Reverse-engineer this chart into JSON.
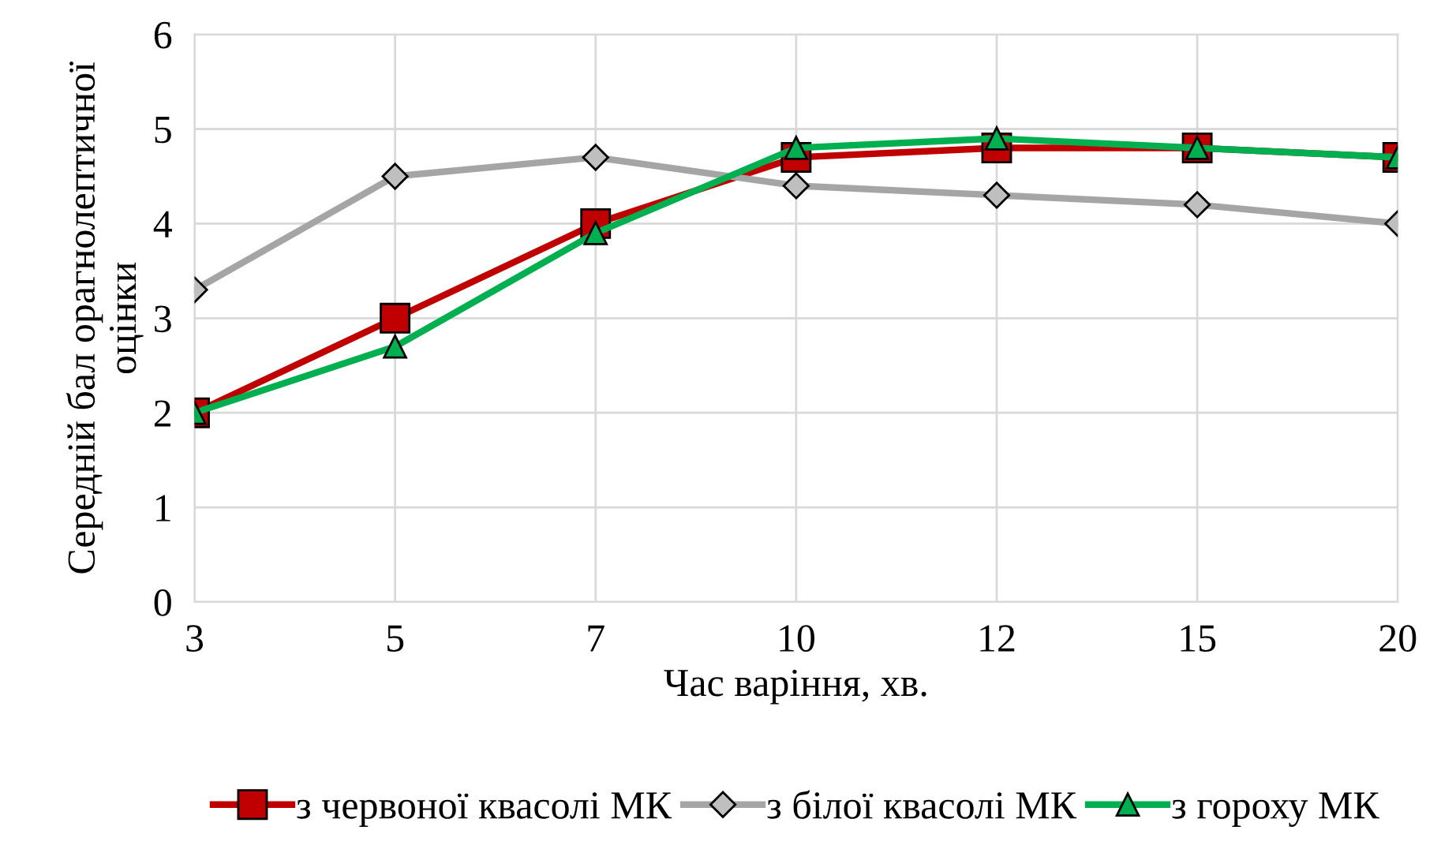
{
  "chart_data": {
    "type": "line",
    "xlabel": "Час варіння, хв.",
    "ylabel": "Середній бал орагнолептичної\nоцінки",
    "categories": [
      "3",
      "5",
      "7",
      "10",
      "12",
      "15",
      "20"
    ],
    "series": [
      {
        "name": "з червоної квасолі МК",
        "color": "#c00000",
        "marker": "square",
        "values": [
          2,
          3,
          4,
          4.7,
          4.8,
          4.8,
          4.7
        ]
      },
      {
        "name": "з білої квасолі МК",
        "color": "#a5a5a5",
        "marker": "diamond",
        "values": [
          3.3,
          4.5,
          4.7,
          4.4,
          4.3,
          4.2,
          4.0
        ]
      },
      {
        "name": "з гороху МК",
        "color": "#00b050",
        "marker": "triangle",
        "values": [
          2,
          2.7,
          3.9,
          4.8,
          4.9,
          4.8,
          4.7
        ]
      }
    ],
    "ylim": [
      0,
      6
    ],
    "yticks": [
      0,
      1,
      2,
      3,
      4,
      5,
      6
    ],
    "grid": true,
    "legend": "bottom",
    "line_style": "solid"
  }
}
